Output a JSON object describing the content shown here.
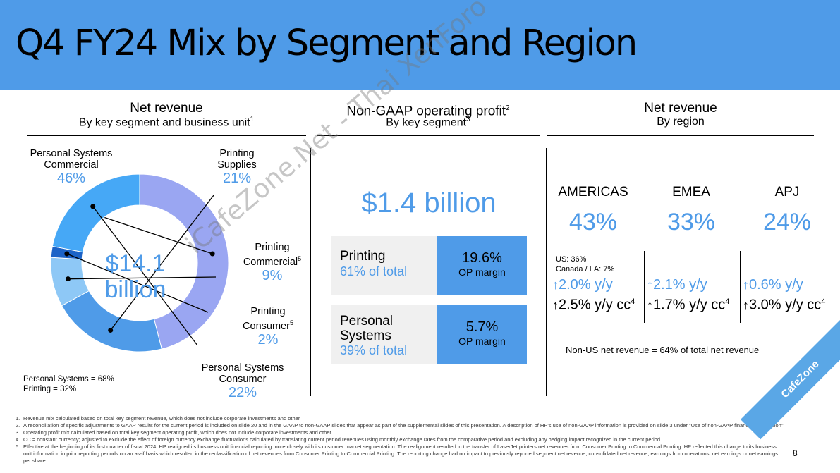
{
  "header": {
    "title": "Q4 FY24 Mix by Segment and Region"
  },
  "left_section": {
    "title": "Net revenue",
    "subtitle": "By key segment and business unit",
    "subtitle_sup": "1",
    "center_line1": "$14.1",
    "center_line2": "billion",
    "segments": [
      {
        "name": "Personal Systems Commercial",
        "line1": "Personal Systems",
        "line2": "Commercial",
        "pct": "46%",
        "value": 46,
        "color": "#9aa6f2"
      },
      {
        "name": "Printing Supplies",
        "line1": "Printing",
        "line2": "Supplies",
        "pct": "21%",
        "value": 21,
        "color": "#4f9be8"
      },
      {
        "name": "Printing Commercial",
        "line1": "Printing",
        "line2": "Commercial",
        "sup": "5",
        "pct": "9%",
        "value": 9,
        "color": "#8ec8f6"
      },
      {
        "name": "Printing Consumer",
        "line1": "Printing",
        "line2": "Consumer",
        "sup": "5",
        "pct": "2%",
        "value": 2,
        "color": "#1c63c7"
      },
      {
        "name": "Personal Systems Consumer",
        "line1": "Personal Systems",
        "line2": "Consumer",
        "pct": "22%",
        "value": 22,
        "color": "#46a8f6"
      }
    ],
    "notes": [
      "Personal Systems = 68%",
      "Printing = 32%"
    ]
  },
  "chart_data": {
    "type": "pie",
    "title": "Net revenue by key segment and business unit",
    "categories": [
      "Personal Systems Commercial",
      "Printing Supplies",
      "Printing Commercial",
      "Printing Consumer",
      "Personal Systems Consumer"
    ],
    "values": [
      46,
      21,
      9,
      2,
      22
    ],
    "center_label": "$14.1 billion"
  },
  "middle_section": {
    "title": "Non-GAAP operating profit",
    "title_sup": "2",
    "subtitle": "By key segment",
    "subtitle_sup": "3",
    "total": "$1.4 billion",
    "cards": [
      {
        "line1": "Printing",
        "share": "61% of total",
        "margin": "19.6%",
        "margin_label": "OP margin"
      },
      {
        "line1": "Personal",
        "line2": "Systems",
        "share": "39% of total",
        "margin": "5.7%",
        "margin_label": "OP margin"
      }
    ]
  },
  "right_section": {
    "title": "Net revenue",
    "subtitle": "By region",
    "regions": [
      {
        "name": "AMERICAS",
        "pct": "43%",
        "details": [
          "US: 36%",
          "Canada / LA: 7%"
        ],
        "growth": "2.0% y/y",
        "growth_cc": "2.5% y/y cc",
        "cc_sup": "4"
      },
      {
        "name": "EMEA",
        "pct": "33%",
        "growth": "2.1% y/y",
        "growth_cc": "1.7% y/y cc",
        "cc_sup": "4"
      },
      {
        "name": "APJ",
        "pct": "24%",
        "growth": "0.6% y/y",
        "growth_cc": "3.0% y/y cc",
        "cc_sup": "4"
      }
    ],
    "arrow_glyph": "↑",
    "footer": "Non-US net revenue = 64% of total net revenue"
  },
  "footnotes": [
    {
      "num": "1.",
      "text": "Revenue mix calculated based on total key segment revenue, which does not include corporate investments and other"
    },
    {
      "num": "2.",
      "text": "A reconciliation of specific adjustments to GAAP results for the current period is included on slide 20 and in the GAAP to non-GAAP slides that appear as part of the supplemental slides of this presentation. A description of HP's use of non-GAAP information is provided on slide 3 under \"Use of non-GAAP financial information\""
    },
    {
      "num": "3.",
      "text": "Operating profit mix calculated based on total key segment operating profit, which does not include corporate investments and other"
    },
    {
      "num": "4.",
      "text": "CC = constant currency; adjusted to exclude the effect of foreign currency exchange fluctuations calculated by translating current period revenues using monthly exchange rates from the comparative period and excluding any hedging impact recognized in the current period"
    },
    {
      "num": "5.",
      "text": "Effective at the beginning of its first quarter of fiscal 2024, HP realigned its business unit financial reporting more closely with its customer market segmentation. The realignment resulted in the transfer of LaserJet printers net revenues from Consumer Printing to Commercial Printing. HP reflected this change to its business unit information in prior reporting periods on an as-if basis which resulted in the reclassification of net revenues from Consumer Printing to Commercial Printing. The reporting change had no impact to previously reported segment net revenue, consolidated net revenue, earnings from operations, net earnings or net earnings per share"
    }
  ],
  "page_number": "8",
  "watermark": "iCafeZone.Net - Thai XenForo Community",
  "badge": "CafeZone"
}
